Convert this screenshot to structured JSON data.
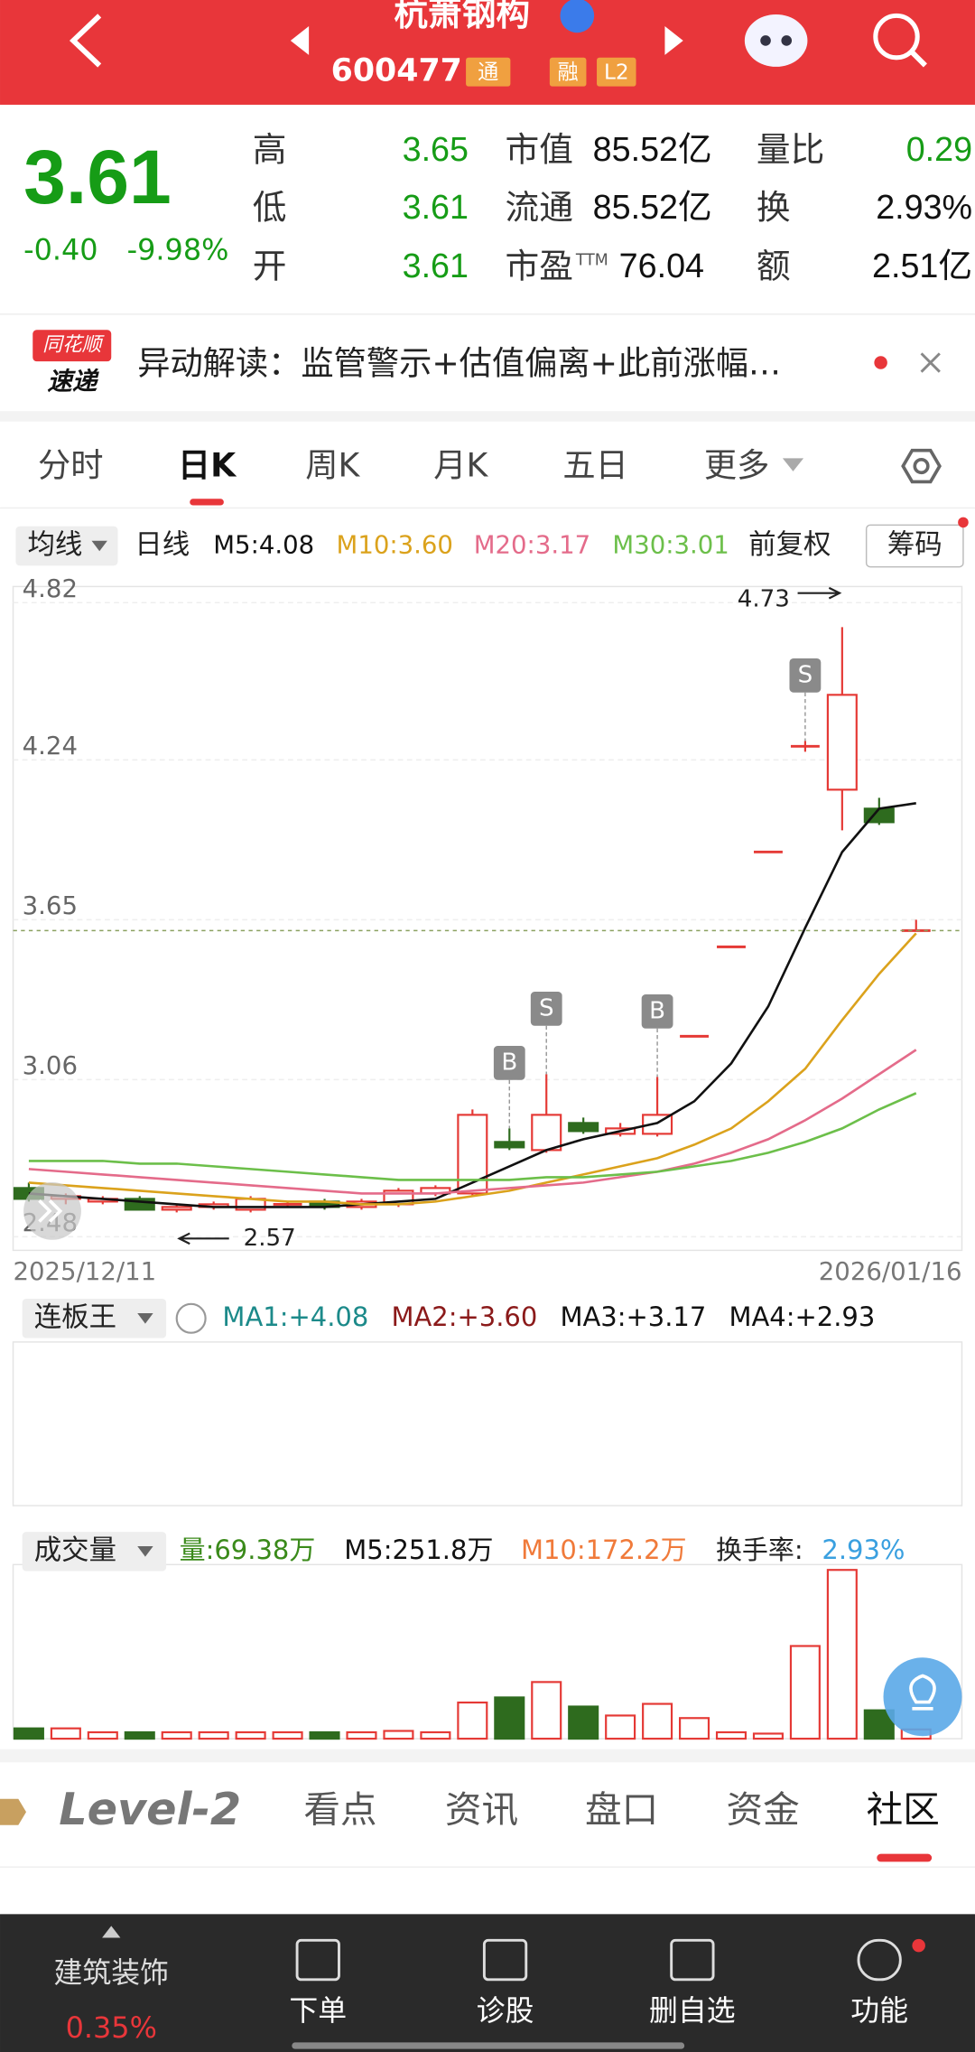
{
  "header": {
    "title": "杭萧钢构",
    "code": "600477",
    "tags": [
      "通",
      "融",
      "L2"
    ]
  },
  "quote": {
    "price": "3.61",
    "change": "-0.40",
    "change_pct": "-9.98%",
    "stats": [
      [
        {
          "label": "高",
          "value": "3.65"
        },
        {
          "label": "低",
          "value": "3.61"
        },
        {
          "label": "开",
          "value": "3.61"
        }
      ],
      [
        {
          "label": "市值",
          "value": "85.52亿"
        },
        {
          "label": "流通",
          "value": "85.52亿"
        },
        {
          "label": "市盈",
          "sup": "TTM",
          "value": "76.04"
        }
      ],
      [
        {
          "label": "量比",
          "value": "0.29"
        },
        {
          "label": "换",
          "value": "2.93%"
        },
        {
          "label": "额",
          "value": "2.51亿"
        }
      ]
    ]
  },
  "news": {
    "logo": [
      "同花顺",
      "速递"
    ],
    "text": "异动解读：监管警示+估值偏离+此前涨幅…"
  },
  "tabs": [
    "分时",
    "日K",
    "周K",
    "月K",
    "五日",
    "更多"
  ],
  "kline_legend": {
    "ma_button": "均线",
    "period": "日线",
    "ma": [
      "M5:4.08",
      "M10:3.60",
      "M20:3.17",
      "M30:3.01"
    ],
    "adjust": "前复权",
    "chips": "筹码"
  },
  "indicator": {
    "name": "连板王",
    "items": [
      "MA1:+4.08",
      "MA2:+3.60",
      "MA3:+3.17",
      "MA4:+2.93"
    ]
  },
  "volume_legend": {
    "name": "成交量",
    "items": [
      "量:69.38万",
      "M5:251.8万",
      "M10:172.2万"
    ],
    "turnover_label": "换手率:",
    "turnover": "2.93%"
  },
  "bottom_tabs": [
    "Level-2",
    "看点",
    "资讯",
    "盘口",
    "资金",
    "社区"
  ],
  "nav": {
    "sector": "建筑装饰",
    "sector_pct": "0.35%",
    "items": [
      "下单",
      "诊股",
      "删自选",
      "功能"
    ]
  },
  "chart_data": {
    "type": "candlestick",
    "categories": [
      "2025/12/11",
      null,
      null,
      null,
      null,
      null,
      null,
      null,
      null,
      null,
      null,
      null,
      null,
      null,
      null,
      null,
      null,
      null,
      null,
      null,
      null,
      null,
      null,
      null,
      "2026/01/16"
    ],
    "open": [
      2.66,
      2.62,
      2.61,
      2.62,
      2.58,
      2.59,
      2.58,
      2.6,
      2.61,
      2.59,
      2.6,
      2.64,
      2.64,
      2.83,
      2.8,
      2.9,
      2.86,
      2.86,
      3.22,
      3.55,
      3.9,
      4.29,
      4.13,
      4.06,
      3.61
    ],
    "high": [
      2.68,
      2.64,
      2.63,
      2.63,
      2.6,
      2.61,
      2.63,
      2.61,
      2.62,
      2.62,
      2.66,
      2.67,
      2.95,
      2.88,
      3.08,
      2.92,
      2.9,
      3.07,
      3.22,
      3.55,
      3.9,
      4.31,
      4.73,
      4.1,
      3.65
    ],
    "low": [
      2.61,
      2.6,
      2.6,
      2.58,
      2.57,
      2.58,
      2.57,
      2.59,
      2.58,
      2.58,
      2.59,
      2.63,
      2.63,
      2.8,
      2.79,
      2.86,
      2.85,
      2.85,
      3.22,
      3.55,
      3.9,
      4.27,
      3.98,
      4.0,
      3.61
    ],
    "close": [
      2.62,
      2.63,
      2.62,
      2.58,
      2.59,
      2.6,
      2.62,
      2.6,
      2.59,
      2.61,
      2.65,
      2.66,
      2.93,
      2.81,
      2.93,
      2.87,
      2.88,
      2.93,
      3.22,
      3.55,
      3.9,
      4.29,
      4.48,
      4.01,
      3.61
    ],
    "up_color": "#e53935",
    "down_color": "#2e6b1e",
    "ma_series": [
      {
        "name": "M5",
        "color": "#111111",
        "values": [
          2.64,
          2.63,
          2.62,
          2.61,
          2.6,
          2.59,
          2.59,
          2.59,
          2.59,
          2.6,
          2.61,
          2.62,
          2.68,
          2.74,
          2.8,
          2.84,
          2.87,
          2.9,
          2.98,
          3.12,
          3.33,
          3.62,
          3.9,
          4.06,
          4.08
        ]
      },
      {
        "name": "M10",
        "color": "#dba21c",
        "values": [
          2.68,
          2.67,
          2.66,
          2.65,
          2.64,
          2.63,
          2.62,
          2.61,
          2.61,
          2.6,
          2.6,
          2.61,
          2.63,
          2.65,
          2.68,
          2.71,
          2.74,
          2.77,
          2.82,
          2.88,
          2.98,
          3.1,
          3.28,
          3.45,
          3.6
        ]
      },
      {
        "name": "M20",
        "color": "#e46b8a",
        "values": [
          2.73,
          2.72,
          2.71,
          2.7,
          2.69,
          2.68,
          2.67,
          2.66,
          2.65,
          2.64,
          2.64,
          2.64,
          2.65,
          2.66,
          2.67,
          2.68,
          2.7,
          2.72,
          2.75,
          2.79,
          2.84,
          2.91,
          2.99,
          3.08,
          3.17
        ]
      },
      {
        "name": "M30",
        "color": "#6cbf4a",
        "values": [
          2.76,
          2.76,
          2.76,
          2.75,
          2.75,
          2.74,
          2.73,
          2.72,
          2.71,
          2.7,
          2.69,
          2.69,
          2.69,
          2.69,
          2.7,
          2.7,
          2.71,
          2.72,
          2.74,
          2.76,
          2.79,
          2.83,
          2.88,
          2.95,
          3.01
        ]
      }
    ],
    "signals": [
      {
        "index": 13,
        "label": "B"
      },
      {
        "index": 14,
        "label": "S"
      },
      {
        "index": 17,
        "label": "B"
      },
      {
        "index": 21,
        "label": "S"
      }
    ],
    "ylim": [
      2.43,
      4.87
    ],
    "yticks": [
      2.48,
      3.06,
      3.65,
      4.24,
      4.82
    ],
    "grid": true,
    "volume": [
      77,
      77,
      48,
      48,
      48,
      48,
      48,
      48,
      48,
      48,
      58,
      48,
      270,
      308,
      423,
      240,
      173,
      260,
      154,
      48,
      38,
      692,
      1260,
      212,
      69.38
    ],
    "volume_ylim": [
      0,
      1300
    ]
  }
}
